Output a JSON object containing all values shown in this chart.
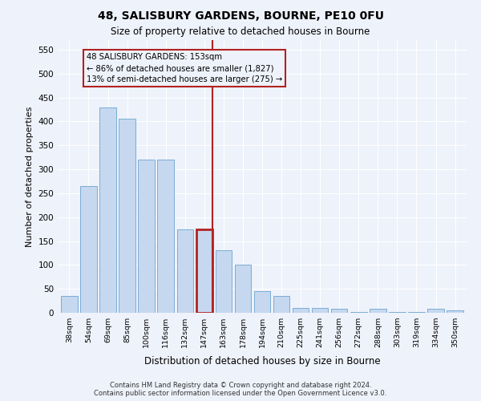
{
  "title": "48, SALISBURY GARDENS, BOURNE, PE10 0FU",
  "subtitle": "Size of property relative to detached houses in Bourne",
  "xlabel": "Distribution of detached houses by size in Bourne",
  "ylabel": "Number of detached properties",
  "categories": [
    "38sqm",
    "54sqm",
    "69sqm",
    "85sqm",
    "100sqm",
    "116sqm",
    "132sqm",
    "147sqm",
    "163sqm",
    "178sqm",
    "194sqm",
    "210sqm",
    "225sqm",
    "241sqm",
    "256sqm",
    "272sqm",
    "288sqm",
    "303sqm",
    "319sqm",
    "334sqm",
    "350sqm"
  ],
  "values": [
    35,
    265,
    430,
    405,
    320,
    320,
    175,
    175,
    130,
    100,
    45,
    35,
    10,
    10,
    8,
    2,
    8,
    2,
    2,
    8,
    5
  ],
  "bar_color": "#c5d8ef",
  "bar_edge_color": "#7aadd4",
  "highlight_index": 7,
  "highlight_color": "#b22222",
  "annotation_text": "48 SALISBURY GARDENS: 153sqm\n← 86% of detached houses are smaller (1,827)\n13% of semi-detached houses are larger (275) →",
  "ylim": [
    0,
    570
  ],
  "yticks": [
    0,
    50,
    100,
    150,
    200,
    250,
    300,
    350,
    400,
    450,
    500,
    550
  ],
  "background_color": "#eef2fb",
  "grid_color": "#ffffff",
  "footer_line1": "Contains HM Land Registry data © Crown copyright and database right 2024.",
  "footer_line2": "Contains public sector information licensed under the Open Government Licence v3.0."
}
